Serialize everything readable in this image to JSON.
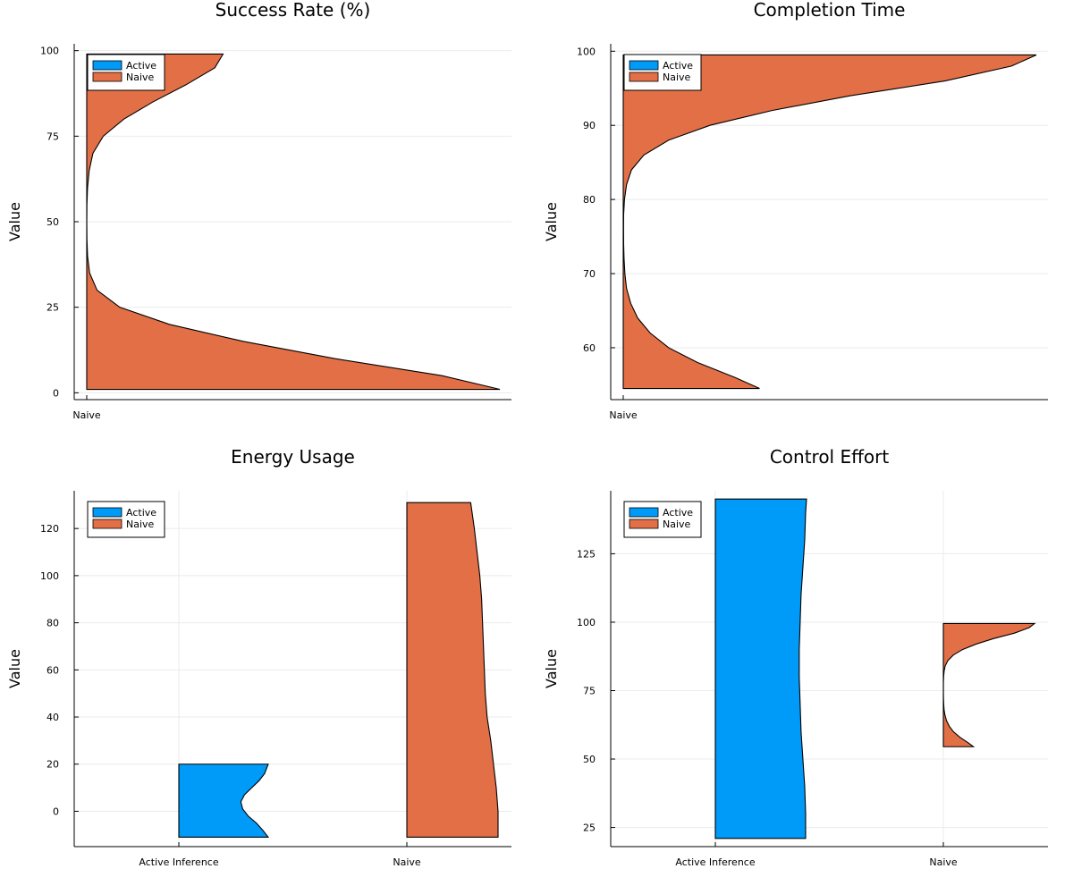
{
  "colors": {
    "active": "#009af9",
    "naive": "#e26f46"
  },
  "chart_data": [
    {
      "type": "violin",
      "title": "Success Rate (%)",
      "ylabel": "Value",
      "categories": [
        "Naive"
      ],
      "ylim": [
        -2,
        102
      ],
      "yticks": [
        0,
        25,
        50,
        75,
        100
      ],
      "legend": [
        "Active",
        "Naive"
      ],
      "legend_position": "top-left",
      "grid": true,
      "series": [
        {
          "name": "Naive",
          "category": "Naive",
          "color_key": "naive",
          "side": "right",
          "y_range": [
            1,
            99
          ],
          "y": [
            1,
            5,
            10,
            15,
            20,
            25,
            30,
            35,
            40,
            45,
            50,
            55,
            60,
            65,
            70,
            75,
            80,
            85,
            90,
            95,
            99
          ],
          "width": [
            1.0,
            0.86,
            0.6,
            0.38,
            0.2,
            0.08,
            0.025,
            0.007,
            0.002,
            0.0005,
            0.0002,
            0.0005,
            0.002,
            0.006,
            0.015,
            0.04,
            0.09,
            0.16,
            0.24,
            0.31,
            0.33
          ]
        }
      ]
    },
    {
      "type": "violin",
      "title": "Completion Time",
      "ylabel": "Value",
      "categories": [
        "Naive"
      ],
      "ylim": [
        53,
        101
      ],
      "yticks": [
        60,
        70,
        80,
        90,
        100
      ],
      "legend": [
        "Active",
        "Naive"
      ],
      "legend_position": "top-left",
      "grid": true,
      "series": [
        {
          "name": "Naive",
          "category": "Naive",
          "color_key": "naive",
          "side": "right",
          "y_range": [
            54.5,
            99.5
          ],
          "y": [
            54.5,
            56,
            58,
            60,
            62,
            64,
            66,
            68,
            70,
            72,
            74,
            76,
            78,
            80,
            82,
            84,
            86,
            88,
            90,
            92,
            94,
            96,
            98,
            99.5
          ],
          "width": [
            0.33,
            0.27,
            0.18,
            0.11,
            0.065,
            0.035,
            0.018,
            0.008,
            0.004,
            0.002,
            0.001,
            0.0008,
            0.001,
            0.003,
            0.008,
            0.02,
            0.05,
            0.11,
            0.21,
            0.36,
            0.55,
            0.78,
            0.94,
            1.0
          ]
        }
      ]
    },
    {
      "type": "violin",
      "title": "Energy Usage",
      "ylabel": "Value",
      "categories": [
        "Active Inference",
        "Naive"
      ],
      "ylim": [
        -15,
        136
      ],
      "yticks": [
        0,
        20,
        40,
        60,
        80,
        100,
        120
      ],
      "legend": [
        "Active",
        "Naive"
      ],
      "legend_position": "top-left",
      "grid": true,
      "series": [
        {
          "name": "Active",
          "category": "Active Inference",
          "color_key": "active",
          "side": "right",
          "y_range": [
            -11,
            20
          ],
          "y": [
            -11,
            -8,
            -5,
            -2,
            1,
            4,
            7,
            10,
            13,
            16,
            20
          ],
          "width": [
            0.98,
            0.92,
            0.85,
            0.76,
            0.7,
            0.68,
            0.72,
            0.8,
            0.88,
            0.94,
            0.98
          ]
        },
        {
          "name": "Naive",
          "category": "Naive",
          "color_key": "naive",
          "side": "right",
          "y_range": [
            -11,
            131
          ],
          "y": [
            -11,
            0,
            10,
            20,
            30,
            40,
            50,
            60,
            70,
            80,
            90,
            100,
            110,
            120,
            131
          ],
          "width": [
            1.0,
            1.0,
            0.98,
            0.95,
            0.92,
            0.88,
            0.86,
            0.85,
            0.84,
            0.83,
            0.82,
            0.8,
            0.77,
            0.74,
            0.7
          ]
        }
      ]
    },
    {
      "type": "violin",
      "title": "Control Effort",
      "ylabel": "Value",
      "categories": [
        "Active Inference",
        "Naive"
      ],
      "ylim": [
        18,
        148
      ],
      "yticks": [
        25,
        50,
        75,
        100,
        125
      ],
      "legend": [
        "Active",
        "Naive"
      ],
      "legend_position": "top-left",
      "grid": true,
      "series": [
        {
          "name": "Active",
          "category": "Active Inference",
          "color_key": "active",
          "side": "right",
          "y_range": [
            21,
            145
          ],
          "y": [
            21,
            30,
            40,
            50,
            60,
            70,
            80,
            90,
            100,
            110,
            120,
            130,
            140,
            145
          ],
          "width": [
            0.99,
            0.99,
            0.98,
            0.96,
            0.94,
            0.93,
            0.92,
            0.92,
            0.93,
            0.94,
            0.96,
            0.98,
            0.99,
            1.0
          ]
        },
        {
          "name": "Naive",
          "category": "Naive",
          "color_key": "naive",
          "side": "right",
          "y_range": [
            54.5,
            99.5
          ],
          "y": [
            54.5,
            56,
            58,
            60,
            62,
            64,
            66,
            68,
            70,
            72,
            74,
            76,
            78,
            80,
            82,
            84,
            86,
            88,
            90,
            92,
            94,
            96,
            98,
            99.5
          ],
          "width": [
            0.33,
            0.27,
            0.18,
            0.11,
            0.065,
            0.035,
            0.018,
            0.008,
            0.004,
            0.002,
            0.001,
            0.0008,
            0.001,
            0.003,
            0.008,
            0.02,
            0.05,
            0.11,
            0.21,
            0.36,
            0.55,
            0.78,
            0.94,
            1.0
          ]
        }
      ]
    }
  ]
}
